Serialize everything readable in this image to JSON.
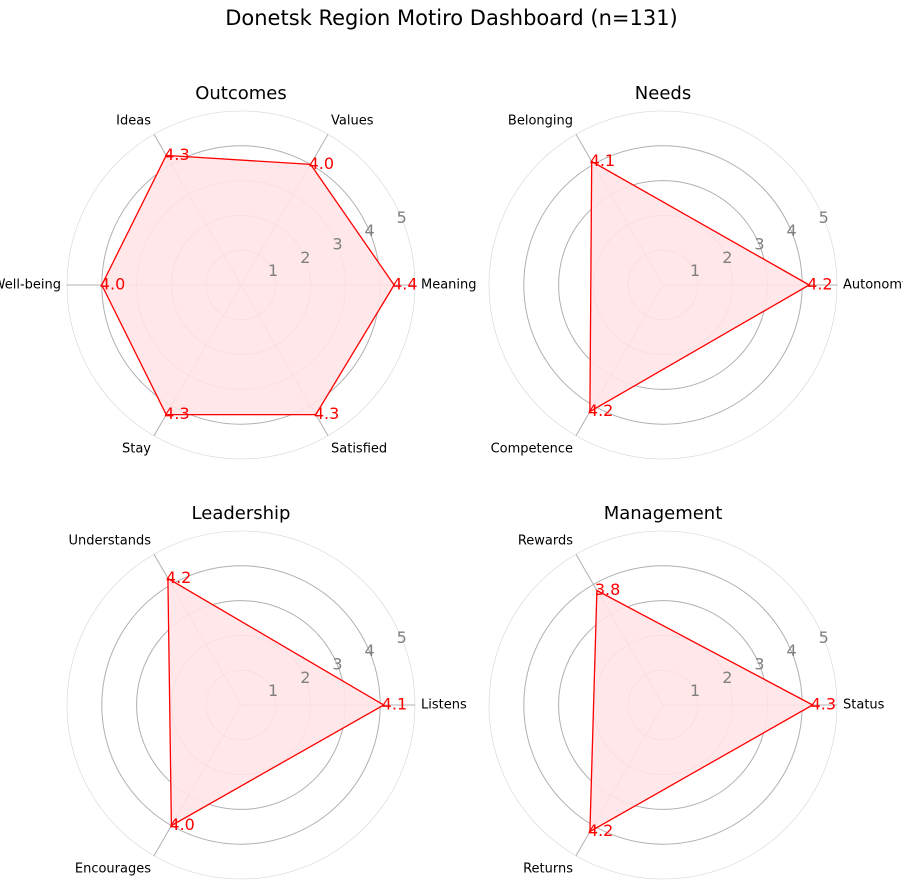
{
  "dashboard": {
    "title": "Donetsk Region Motiro Dashboard (n=131)"
  },
  "chart_data": [
    {
      "type": "radar",
      "title": "Outcomes",
      "rlim": [
        0,
        5
      ],
      "rings": [
        1,
        2,
        3,
        4,
        5
      ],
      "categories": [
        "Meaning",
        "Values",
        "Ideas",
        "Well-being",
        "Stay",
        "Satisfied"
      ],
      "values": [
        4.4,
        4.0,
        4.3,
        4.0,
        4.3,
        4.3
      ],
      "value_labels": [
        "4.4",
        "4.0",
        "4.3",
        "4.0",
        "4.3",
        "4.3"
      ],
      "colors": {
        "line": "#ff0000",
        "fill": "#ffe4e8"
      }
    },
    {
      "type": "radar",
      "title": "Needs",
      "rlim": [
        0,
        5
      ],
      "rings": [
        1,
        2,
        3,
        4,
        5
      ],
      "categories": [
        "Autonomy",
        "Belonging",
        "Competence"
      ],
      "values": [
        4.2,
        4.1,
        4.2
      ],
      "value_labels": [
        "4.2",
        "4.1",
        "4.2"
      ],
      "colors": {
        "line": "#ff0000",
        "fill": "#ffe4e8"
      }
    },
    {
      "type": "radar",
      "title": "Leadership",
      "rlim": [
        0,
        5
      ],
      "rings": [
        1,
        2,
        3,
        4,
        5
      ],
      "categories": [
        "Listens",
        "Understands",
        "Encourages"
      ],
      "values": [
        4.1,
        4.2,
        4.0
      ],
      "value_labels": [
        "4.1",
        "4.2",
        "4.0"
      ],
      "colors": {
        "line": "#ff0000",
        "fill": "#ffe4e8"
      }
    },
    {
      "type": "radar",
      "title": "Management",
      "rlim": [
        0,
        5
      ],
      "rings": [
        1,
        2,
        3,
        4,
        5
      ],
      "categories": [
        "Status",
        "Rewards",
        "Returns"
      ],
      "values": [
        4.3,
        3.8,
        4.2
      ],
      "value_labels": [
        "4.3",
        "3.8",
        "4.2"
      ],
      "colors": {
        "line": "#ff0000",
        "fill": "#ffe4e8"
      }
    }
  ]
}
